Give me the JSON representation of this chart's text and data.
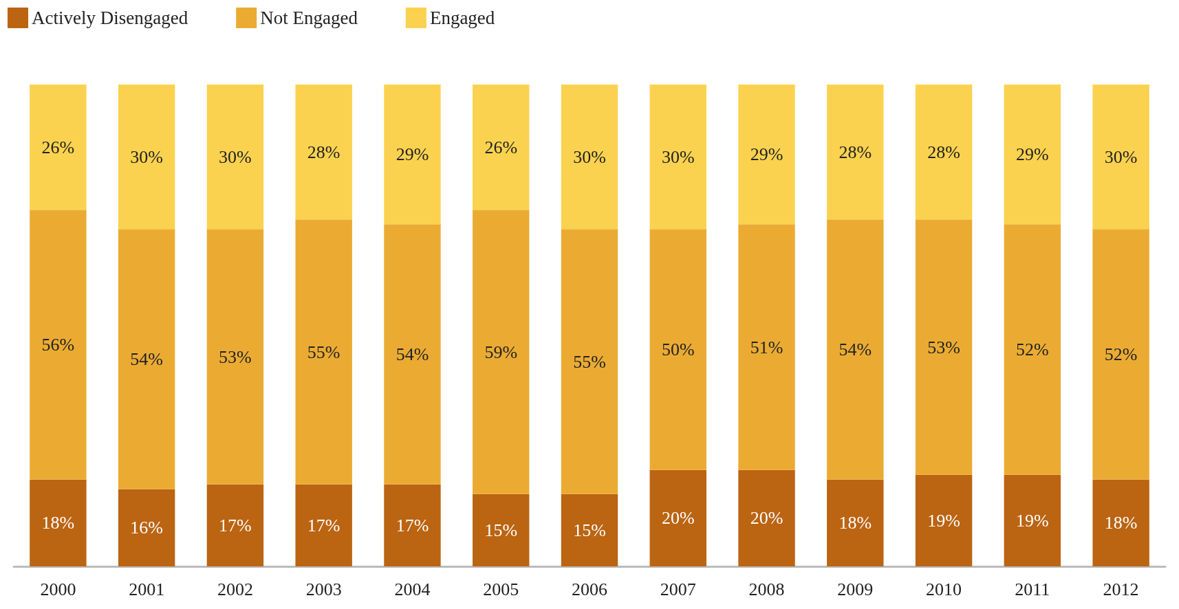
{
  "chart_data": {
    "type": "bar",
    "stacked": true,
    "legend": "top left",
    "categories": [
      "2000",
      "2001",
      "2002",
      "2003",
      "2004",
      "2005",
      "2006",
      "2007",
      "2008",
      "2009",
      "2010",
      "2011",
      "2012"
    ],
    "series": [
      {
        "name": "Actively Disengaged",
        "color": "#bb6412",
        "values": [
          18,
          16,
          17,
          17,
          17,
          15,
          15,
          20,
          20,
          18,
          19,
          19,
          18
        ],
        "value_labels": [
          "18%",
          "16%",
          "17%",
          "17%",
          "17%",
          "15%",
          "15%",
          "20%",
          "20%",
          "18%",
          "19%",
          "19%",
          "18%"
        ]
      },
      {
        "name": "Not Engaged",
        "color": "#ebab33",
        "values": [
          56,
          54,
          53,
          55,
          54,
          59,
          55,
          50,
          51,
          54,
          53,
          52,
          52
        ],
        "value_labels": [
          "56%",
          "54%",
          "53%",
          "55%",
          "54%",
          "59%",
          "55%",
          "50%",
          "51%",
          "54%",
          "53%",
          "52%",
          "52%"
        ]
      },
      {
        "name": "Engaged",
        "color": "#fbd24f",
        "values": [
          26,
          30,
          30,
          28,
          29,
          26,
          30,
          30,
          29,
          28,
          28,
          29,
          30
        ],
        "value_labels": [
          "26%",
          "30%",
          "30%",
          "28%",
          "29%",
          "26%",
          "30%",
          "30%",
          "29%",
          "28%",
          "28%",
          "29%",
          "30%"
        ]
      }
    ]
  }
}
